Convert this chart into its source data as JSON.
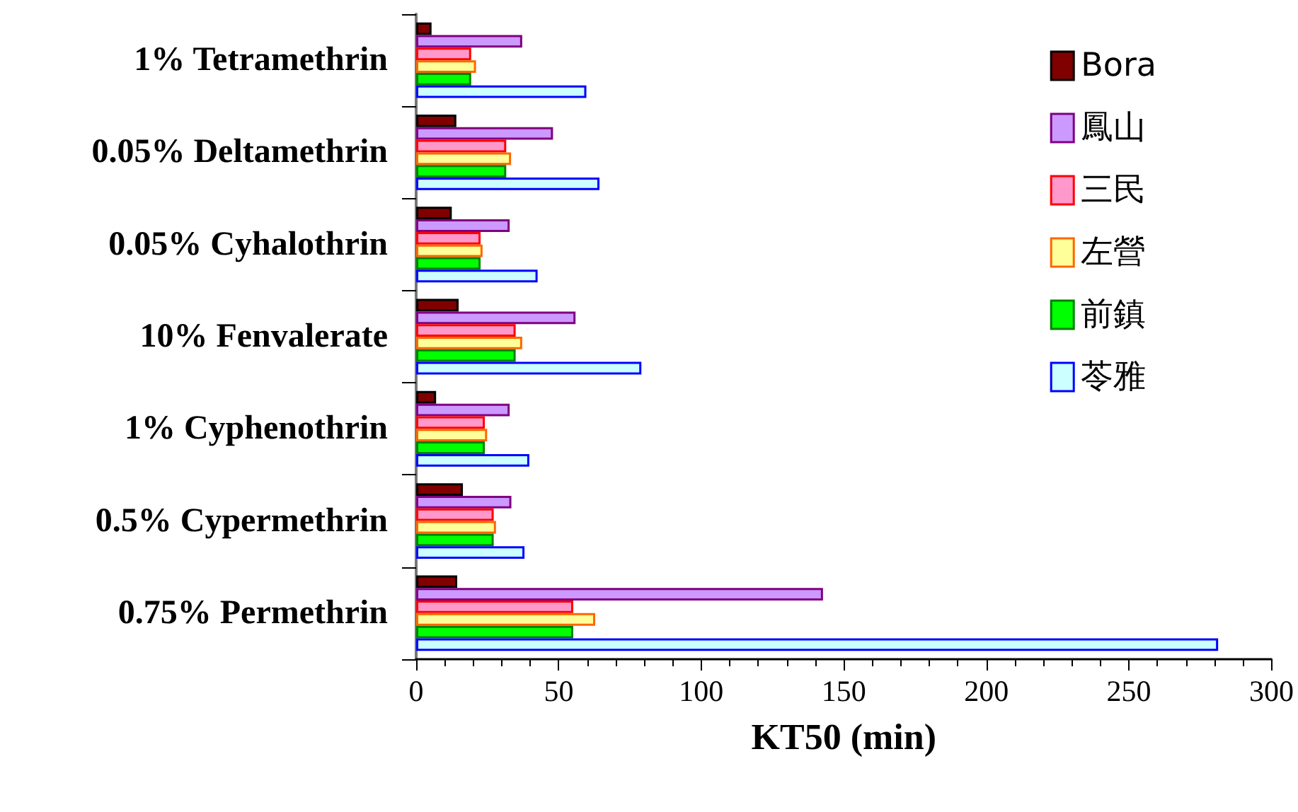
{
  "chart_data": {
    "type": "bar",
    "orientation": "horizontal",
    "xlabel": "KT50 (min)",
    "categories": [
      "1% Tetramethrin",
      "0.05% Deltamethrin",
      "0.05% Cyhalothrin",
      "10% Fenvalerate",
      "1% Cyphenothrin",
      "0.5% Cypermethrin",
      "0.75% Permethrin"
    ],
    "series": [
      {
        "name": "Bora",
        "color": "#800000",
        "values": [
          5.4,
          14.1,
          12.5,
          14.9,
          7,
          16.4,
          14.4
        ]
      },
      {
        "name": "鳳山",
        "color": "#cc99ff",
        "values": [
          37.2,
          48,
          32.8,
          55.9,
          32.8,
          33.4,
          142.7
        ]
      },
      {
        "name": "三民",
        "color": "#ff99cc",
        "values": [
          19.3,
          31.6,
          22.6,
          34.9,
          24.1,
          27.2,
          55.1
        ]
      },
      {
        "name": "左營",
        "color": "#ffff99",
        "values": [
          21,
          33.3,
          23.3,
          37.2,
          24.9,
          28,
          62.8
        ]
      },
      {
        "name": "前鎮",
        "color": "#00ff00",
        "values": [
          19.3,
          31.6,
          22.6,
          34.9,
          24.1,
          27.2,
          55.1
        ]
      },
      {
        "name": "苓雅",
        "color": "#ccffff",
        "values": [
          59.7,
          64.3,
          42.6,
          79,
          39.7,
          38,
          281.3
        ]
      }
    ],
    "xlim": [
      0,
      300
    ],
    "xticks": [
      0,
      50,
      100,
      150,
      200,
      250,
      300
    ],
    "grid": false,
    "legend": "top right"
  }
}
